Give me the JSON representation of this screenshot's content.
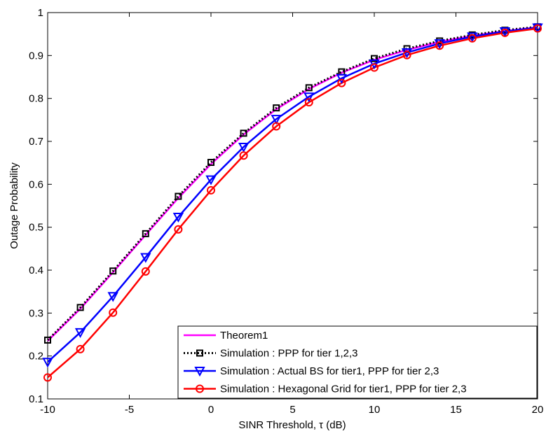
{
  "chart_data": {
    "type": "line",
    "xlabel": "SINR Threshold,  τ (dB)",
    "ylabel": "Outage Probability",
    "xlim": [
      -10,
      20
    ],
    "ylim": [
      0.1,
      1
    ],
    "xticks": [
      -10,
      -5,
      0,
      5,
      10,
      15,
      20
    ],
    "yticks": [
      0.1,
      0.2,
      0.3,
      0.4,
      0.5,
      0.6,
      0.7,
      0.8,
      0.9,
      1
    ],
    "xtick_labels": [
      "-10",
      "-5",
      "0",
      "5",
      "10",
      "15",
      "20"
    ],
    "ytick_labels": [
      "0.1",
      "0.2",
      "0.3",
      "0.4",
      "0.5",
      "0.6",
      "0.7",
      "0.8",
      "0.9",
      "1"
    ],
    "grid": false,
    "legend_position": "bottom-right",
    "x": [
      -10,
      -8,
      -6,
      -4,
      -2,
      0,
      2,
      4,
      6,
      8,
      10,
      12,
      14,
      16,
      18,
      20
    ],
    "series": [
      {
        "name": "Theorem1",
        "color": "#ff00ff",
        "line_style": "solid",
        "marker": "none",
        "values": [
          0.235,
          0.31,
          0.395,
          0.482,
          0.568,
          0.647,
          0.716,
          0.775,
          0.822,
          0.86,
          0.89,
          0.913,
          0.932,
          0.946,
          0.957,
          0.966
        ]
      },
      {
        "name": "Simulation : PPP for tier 1,2,3",
        "color": "#000000",
        "line_style": "dotted",
        "marker": "square",
        "values": [
          0.237,
          0.313,
          0.398,
          0.485,
          0.572,
          0.651,
          0.719,
          0.778,
          0.825,
          0.862,
          0.893,
          0.916,
          0.934,
          0.948,
          0.959,
          0.967
        ]
      },
      {
        "name": "Simulation : Actual BS for tier1, PPP for tier 2,3",
        "color": "#0000ff",
        "line_style": "solid",
        "marker": "triangle-down",
        "values": [
          0.186,
          0.255,
          0.339,
          0.43,
          0.524,
          0.611,
          0.687,
          0.752,
          0.804,
          0.847,
          0.881,
          0.907,
          0.928,
          0.944,
          0.956,
          0.965
        ]
      },
      {
        "name": "Simulation : Hexagonal Grid for tier1, PPP for tier 2,3",
        "color": "#ff0000",
        "line_style": "solid",
        "marker": "circle",
        "values": [
          0.15,
          0.216,
          0.301,
          0.397,
          0.495,
          0.586,
          0.667,
          0.735,
          0.791,
          0.836,
          0.872,
          0.901,
          0.923,
          0.94,
          0.953,
          0.963
        ]
      }
    ]
  }
}
